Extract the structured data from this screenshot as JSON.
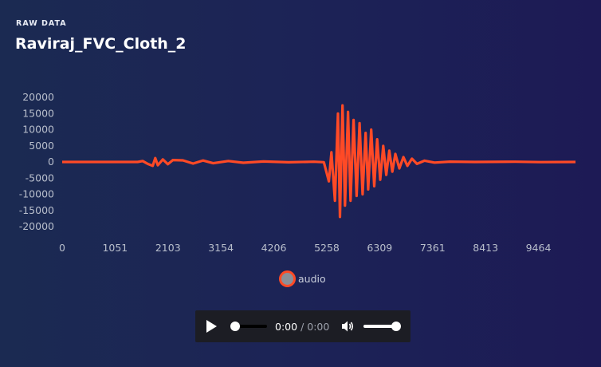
{
  "header": {
    "kicker": "RAW DATA",
    "title": "Raviraj_FVC_Cloth_2"
  },
  "chart_data": {
    "type": "line",
    "title": "",
    "xlabel": "",
    "ylabel": "",
    "x_ticks": [
      "0",
      "1051",
      "2103",
      "3154",
      "4206",
      "5258",
      "6309",
      "7361",
      "8413",
      "9464"
    ],
    "y_ticks": [
      "20000",
      "15000",
      "10000",
      "5000",
      "0",
      "-5000",
      "-10000",
      "-15000",
      "-20000"
    ],
    "xlim": [
      0,
      10200
    ],
    "ylim": [
      -20000,
      20000
    ],
    "grid": false,
    "legend_position": "bottom-center",
    "series": [
      {
        "name": "audio",
        "color": "#ff4a26",
        "points": [
          [
            0,
            0
          ],
          [
            500,
            0
          ],
          [
            1000,
            0
          ],
          [
            1500,
            0
          ],
          [
            1600,
            300
          ],
          [
            1700,
            -600
          ],
          [
            1800,
            -1200
          ],
          [
            1850,
            1200
          ],
          [
            1900,
            -1000
          ],
          [
            2000,
            800
          ],
          [
            2100,
            -700
          ],
          [
            2200,
            600
          ],
          [
            2400,
            500
          ],
          [
            2600,
            -500
          ],
          [
            2800,
            450
          ],
          [
            3000,
            -400
          ],
          [
            3300,
            300
          ],
          [
            3600,
            -250
          ],
          [
            4000,
            150
          ],
          [
            4500,
            -100
          ],
          [
            5000,
            80
          ],
          [
            5200,
            -80
          ],
          [
            5300,
            -6000
          ],
          [
            5350,
            3000
          ],
          [
            5420,
            -12000
          ],
          [
            5480,
            15000
          ],
          [
            5520,
            -17000
          ],
          [
            5570,
            17500
          ],
          [
            5620,
            -13500
          ],
          [
            5680,
            15500
          ],
          [
            5730,
            -12000
          ],
          [
            5790,
            13000
          ],
          [
            5850,
            -10500
          ],
          [
            5910,
            12000
          ],
          [
            5970,
            -10000
          ],
          [
            6030,
            9000
          ],
          [
            6080,
            -8500
          ],
          [
            6140,
            10000
          ],
          [
            6200,
            -7500
          ],
          [
            6260,
            7000
          ],
          [
            6320,
            -5500
          ],
          [
            6380,
            5000
          ],
          [
            6440,
            -4000
          ],
          [
            6500,
            3500
          ],
          [
            6560,
            -3000
          ],
          [
            6620,
            2500
          ],
          [
            6700,
            -2000
          ],
          [
            6780,
            1500
          ],
          [
            6860,
            -1200
          ],
          [
            6950,
            1000
          ],
          [
            7050,
            -600
          ],
          [
            7200,
            400
          ],
          [
            7400,
            -200
          ],
          [
            7700,
            100
          ],
          [
            8200,
            0
          ],
          [
            9000,
            80
          ],
          [
            9500,
            -60
          ],
          [
            10200,
            0
          ]
        ]
      }
    ]
  },
  "player": {
    "current_time": "0:00",
    "separator": "/",
    "total_time": "0:00",
    "seek_position": 0,
    "volume": 1
  },
  "colors": {
    "series": "#ff4a26",
    "axis_text": "#b9bfcc",
    "player_bg": "#1c1d24"
  }
}
